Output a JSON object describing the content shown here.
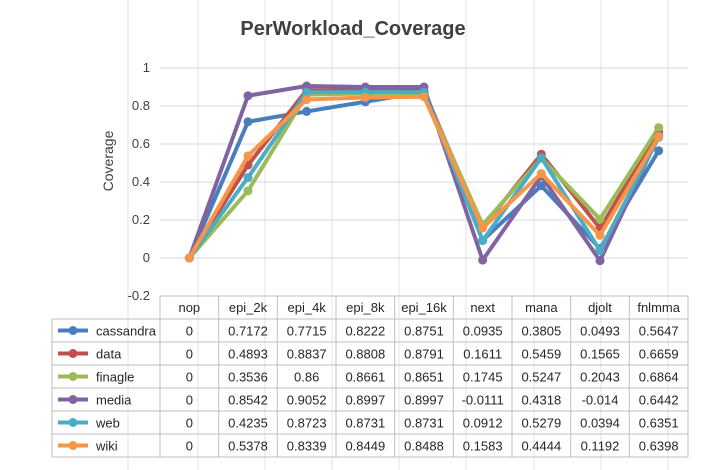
{
  "chart_data": {
    "type": "line",
    "title": "PerWorkload_Coverage",
    "xlabel": "",
    "ylabel": "Coverage",
    "ylim": [
      -0.2,
      1
    ],
    "yticks": [
      "1",
      "0.8",
      "0.6",
      "0.4",
      "0.2",
      "0",
      "-0.2"
    ],
    "ytick_values": [
      1,
      0.8,
      0.6,
      0.4,
      0.2,
      0,
      -0.2
    ],
    "grid": true,
    "legend": "data-table-left",
    "categories": [
      "nop",
      "epi_2k",
      "epi_4k",
      "epi_8k",
      "epi_16k",
      "next",
      "mana",
      "djolt",
      "fnlmma"
    ],
    "series": [
      {
        "name": "cassandra",
        "color": "#4a7ebb",
        "values": [
          0,
          0.7172,
          0.7715,
          0.8222,
          0.8751,
          0.0935,
          0.3805,
          0.0493,
          0.5647
        ],
        "labels": [
          "0",
          "0.7172",
          "0.7715",
          "0.8222",
          "0.8751",
          "0.0935",
          "0.3805",
          "0.0493",
          "0.5647"
        ]
      },
      {
        "name": "data",
        "color": "#c0504d",
        "values": [
          0,
          0.4893,
          0.8837,
          0.8808,
          0.8791,
          0.1611,
          0.5459,
          0.1565,
          0.6659
        ],
        "labels": [
          "0",
          "0.4893",
          "0.8837",
          "0.8808",
          "0.8791",
          "0.1611",
          "0.5459",
          "0.1565",
          "0.6659"
        ]
      },
      {
        "name": "finagle",
        "color": "#9bbb59",
        "values": [
          0,
          0.3536,
          0.86,
          0.8661,
          0.8651,
          0.1745,
          0.5247,
          0.2043,
          0.6864
        ],
        "labels": [
          "0",
          "0.3536",
          "0.86",
          "0.8661",
          "0.8651",
          "0.1745",
          "0.5247",
          "0.2043",
          "0.6864"
        ]
      },
      {
        "name": "media",
        "color": "#8064a2",
        "values": [
          0,
          0.8542,
          0.9052,
          0.8997,
          0.8997,
          -0.0111,
          0.4318,
          -0.014,
          0.6442
        ],
        "labels": [
          "0",
          "0.8542",
          "0.9052",
          "0.8997",
          "0.8997",
          "-0.0111",
          "0.4318",
          "-0.014",
          "0.6442"
        ]
      },
      {
        "name": "web",
        "color": "#4bacc6",
        "values": [
          0,
          0.4235,
          0.8723,
          0.8731,
          0.8731,
          0.0912,
          0.5279,
          0.0394,
          0.6351
        ],
        "labels": [
          "0",
          "0.4235",
          "0.8723",
          "0.8731",
          "0.8731",
          "0.0912",
          "0.5279",
          "0.0394",
          "0.6351"
        ]
      },
      {
        "name": "wiki",
        "color": "#f79646",
        "values": [
          0,
          0.5378,
          0.8339,
          0.8449,
          0.8488,
          0.1583,
          0.4444,
          0.1192,
          0.6398
        ],
        "labels": [
          "0",
          "0.5378",
          "0.8339",
          "0.8449",
          "0.8488",
          "0.1583",
          "0.4444",
          "0.1192",
          "0.6398"
        ]
      }
    ]
  }
}
